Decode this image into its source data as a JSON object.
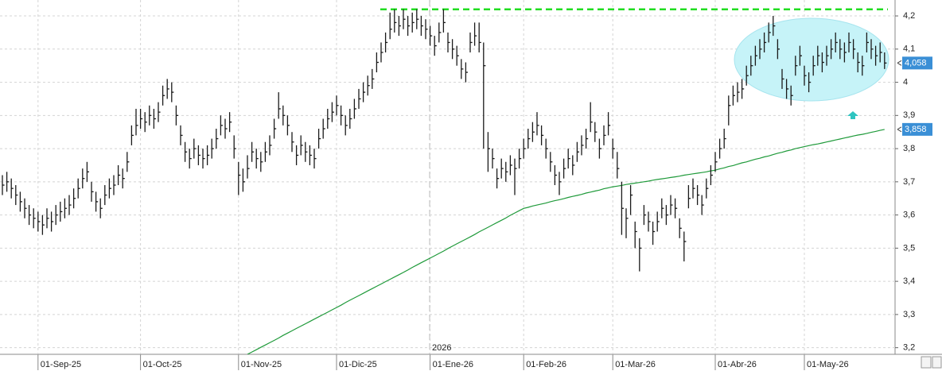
{
  "chart_data": {
    "type": "ohlc",
    "categories": [
      null,
      null,
      null,
      null,
      null,
      null,
      null,
      null,
      "01-Sep-25",
      null,
      null,
      null,
      null,
      null,
      null,
      null,
      null,
      null,
      null,
      null,
      null,
      null,
      null,
      null,
      null,
      null,
      null,
      null,
      null,
      null,
      null,
      "01-Oct-25",
      null,
      null,
      null,
      null,
      null,
      null,
      null,
      null,
      null,
      null,
      null,
      null,
      null,
      null,
      null,
      null,
      null,
      null,
      null,
      null,
      null,
      "01-Nov-25",
      null,
      null,
      null,
      null,
      null,
      null,
      null,
      null,
      null,
      null,
      null,
      null,
      null,
      null,
      null,
      null,
      null,
      null,
      null,
      null,
      null,
      "01-Dic-25",
      null,
      null,
      null,
      null,
      null,
      null,
      null,
      null,
      null,
      null,
      null,
      null,
      null,
      null,
      null,
      null,
      null,
      null,
      null,
      null,
      "01-Ene-26",
      null,
      null,
      null,
      null,
      null,
      null,
      null,
      null,
      null,
      null,
      null,
      null,
      null,
      null,
      null,
      null,
      null,
      null,
      null,
      null,
      "01-Feb-26",
      null,
      null,
      null,
      null,
      null,
      null,
      null,
      null,
      null,
      null,
      null,
      null,
      null,
      null,
      null,
      null,
      null,
      null,
      null,
      "01-Mar-26",
      null,
      null,
      null,
      null,
      null,
      null,
      null,
      null,
      null,
      null,
      null,
      null,
      null,
      null,
      null,
      null,
      null,
      null,
      null,
      null,
      null,
      null,
      "01-Abr-26",
      null,
      null,
      null,
      null,
      null,
      null,
      null,
      null,
      null,
      null,
      null,
      null,
      null,
      null,
      null,
      null,
      null,
      null,
      null,
      "01-May-26",
      null,
      null,
      null,
      null,
      null,
      null,
      null,
      null,
      null,
      null,
      null,
      null,
      null,
      null,
      null,
      null,
      null,
      null
    ],
    "high": [
      3.72,
      3.73,
      3.71,
      3.69,
      3.67,
      3.65,
      3.63,
      3.62,
      3.61,
      3.6,
      3.62,
      3.61,
      3.63,
      3.64,
      3.65,
      3.66,
      3.68,
      3.71,
      3.74,
      3.76,
      3.7,
      3.67,
      3.65,
      3.69,
      3.71,
      3.72,
      3.75,
      3.74,
      3.79,
      3.87,
      3.92,
      3.92,
      3.91,
      3.93,
      3.92,
      3.94,
      3.99,
      4.01,
      4.0,
      3.93,
      3.87,
      3.82,
      3.8,
      3.83,
      3.81,
      3.8,
      3.81,
      3.83,
      3.86,
      3.9,
      3.89,
      3.91,
      3.84,
      3.76,
      3.74,
      3.78,
      3.82,
      3.8,
      3.79,
      3.82,
      3.84,
      3.89,
      3.97,
      3.93,
      3.9,
      3.85,
      3.81,
      3.84,
      3.82,
      3.81,
      3.8,
      3.86,
      3.89,
      3.92,
      3.94,
      3.96,
      3.93,
      3.9,
      3.92,
      3.95,
      3.98,
      4.0,
      4.02,
      4.04,
      4.09,
      4.12,
      4.15,
      4.21,
      4.22,
      4.2,
      4.22,
      4.2,
      4.21,
      4.22,
      4.2,
      4.19,
      4.17,
      4.14,
      4.18,
      4.22,
      4.15,
      4.13,
      4.11,
      4.07,
      4.06,
      4.15,
      4.18,
      4.18,
      4.12,
      3.85,
      3.8,
      3.74,
      3.77,
      3.76,
      3.78,
      3.77,
      3.8,
      3.83,
      3.86,
      3.88,
      3.91,
      3.87,
      3.83,
      3.79,
      3.75,
      3.73,
      3.77,
      3.8,
      3.78,
      3.82,
      3.84,
      3.86,
      3.94,
      3.88,
      3.83,
      3.87,
      3.91,
      3.83,
      3.79,
      3.7,
      3.62,
      3.69,
      3.58,
      3.53,
      3.63,
      3.61,
      3.58,
      3.61,
      3.65,
      3.63,
      3.66,
      3.65,
      3.59,
      3.55,
      3.69,
      3.71,
      3.69,
      3.66,
      3.71,
      3.75,
      3.79,
      3.83,
      3.86,
      3.96,
      3.99,
      4.0,
      4.01,
      4.05,
      4.08,
      4.11,
      4.13,
      4.15,
      4.18,
      4.2,
      4.13,
      4.04,
      4.01,
      3.99,
      4.08,
      4.11,
      4.05,
      4.03,
      4.08,
      4.11,
      4.09,
      4.11,
      4.13,
      4.15,
      4.13,
      4.12,
      4.15,
      4.13,
      4.09,
      4.08,
      4.15,
      4.13,
      4.11,
      4.12,
      4.09
    ],
    "low": [
      3.66,
      3.67,
      3.65,
      3.63,
      3.61,
      3.59,
      3.57,
      3.56,
      3.55,
      3.54,
      3.56,
      3.55,
      3.57,
      3.58,
      3.59,
      3.6,
      3.62,
      3.65,
      3.68,
      3.7,
      3.64,
      3.61,
      3.59,
      3.63,
      3.65,
      3.66,
      3.69,
      3.68,
      3.73,
      3.81,
      3.84,
      3.86,
      3.85,
      3.87,
      3.86,
      3.88,
      3.93,
      3.95,
      3.94,
      3.87,
      3.81,
      3.76,
      3.74,
      3.77,
      3.75,
      3.74,
      3.75,
      3.77,
      3.8,
      3.84,
      3.83,
      3.85,
      3.77,
      3.66,
      3.67,
      3.71,
      3.76,
      3.74,
      3.73,
      3.76,
      3.78,
      3.83,
      3.89,
      3.87,
      3.84,
      3.79,
      3.75,
      3.78,
      3.76,
      3.75,
      3.74,
      3.8,
      3.83,
      3.86,
      3.88,
      3.9,
      3.87,
      3.84,
      3.86,
      3.89,
      3.92,
      3.94,
      3.96,
      3.98,
      4.03,
      4.06,
      4.09,
      4.13,
      4.15,
      4.14,
      4.16,
      4.14,
      4.15,
      4.16,
      4.14,
      4.13,
      4.11,
      4.08,
      4.12,
      4.15,
      4.09,
      4.07,
      4.05,
      4.01,
      4.0,
      4.09,
      4.11,
      4.09,
      3.8,
      3.73,
      3.74,
      3.68,
      3.71,
      3.7,
      3.72,
      3.66,
      3.74,
      3.77,
      3.8,
      3.82,
      3.84,
      3.81,
      3.77,
      3.73,
      3.69,
      3.66,
      3.71,
      3.74,
      3.72,
      3.76,
      3.78,
      3.8,
      3.85,
      3.82,
      3.77,
      3.81,
      3.84,
      3.77,
      3.71,
      3.54,
      3.53,
      3.6,
      3.5,
      3.43,
      3.57,
      3.55,
      3.51,
      3.55,
      3.59,
      3.57,
      3.6,
      3.59,
      3.53,
      3.46,
      3.62,
      3.65,
      3.63,
      3.6,
      3.65,
      3.69,
      3.73,
      3.77,
      3.8,
      3.87,
      3.93,
      3.94,
      3.95,
      3.99,
      4.02,
      4.05,
      4.07,
      4.09,
      4.12,
      4.14,
      4.07,
      3.98,
      3.95,
      3.93,
      4.02,
      4.05,
      3.99,
      3.97,
      4.02,
      4.05,
      4.03,
      4.05,
      4.07,
      4.09,
      4.07,
      4.06,
      4.09,
      4.07,
      4.03,
      4.02,
      4.09,
      4.07,
      4.05,
      4.06,
      4.04
    ],
    "close": [
      3.69,
      3.7,
      3.68,
      3.66,
      3.64,
      3.62,
      3.6,
      3.59,
      3.58,
      3.57,
      3.59,
      3.58,
      3.6,
      3.61,
      3.62,
      3.63,
      3.65,
      3.68,
      3.71,
      3.73,
      3.67,
      3.64,
      3.62,
      3.66,
      3.68,
      3.69,
      3.72,
      3.71,
      3.76,
      3.84,
      3.87,
      3.89,
      3.88,
      3.9,
      3.89,
      3.91,
      3.96,
      3.98,
      3.97,
      3.9,
      3.84,
      3.79,
      3.77,
      3.8,
      3.78,
      3.77,
      3.78,
      3.8,
      3.83,
      3.87,
      3.86,
      3.88,
      3.8,
      3.72,
      3.7,
      3.74,
      3.79,
      3.77,
      3.76,
      3.79,
      3.81,
      3.86,
      3.92,
      3.9,
      3.87,
      3.82,
      3.78,
      3.81,
      3.79,
      3.78,
      3.77,
      3.83,
      3.86,
      3.89,
      3.91,
      3.93,
      3.9,
      3.87,
      3.89,
      3.92,
      3.95,
      3.97,
      3.99,
      4.01,
      4.06,
      4.09,
      4.12,
      4.16,
      4.18,
      4.17,
      4.19,
      4.17,
      4.18,
      4.19,
      4.17,
      4.16,
      4.14,
      4.11,
      4.15,
      4.18,
      4.12,
      4.1,
      4.08,
      4.04,
      4.03,
      4.12,
      4.14,
      4.12,
      4.05,
      3.8,
      3.77,
      3.71,
      3.74,
      3.73,
      3.75,
      3.74,
      3.77,
      3.8,
      3.83,
      3.85,
      3.87,
      3.84,
      3.8,
      3.76,
      3.72,
      3.7,
      3.74,
      3.77,
      3.75,
      3.79,
      3.81,
      3.83,
      3.88,
      3.85,
      3.8,
      3.84,
      3.87,
      3.8,
      3.74,
      3.62,
      3.59,
      3.66,
      3.55,
      3.5,
      3.6,
      3.58,
      3.55,
      3.58,
      3.62,
      3.6,
      3.63,
      3.62,
      3.56,
      3.52,
      3.65,
      3.68,
      3.66,
      3.63,
      3.68,
      3.72,
      3.76,
      3.8,
      3.83,
      3.93,
      3.96,
      3.97,
      3.98,
      4.02,
      4.05,
      4.08,
      4.1,
      4.12,
      4.15,
      4.17,
      4.1,
      4.01,
      3.98,
      3.96,
      4.05,
      4.08,
      4.02,
      4.0,
      4.05,
      4.08,
      4.06,
      4.08,
      4.1,
      4.12,
      4.1,
      4.09,
      4.12,
      4.1,
      4.06,
      4.05,
      4.12,
      4.1,
      4.08,
      4.09,
      4.058
    ],
    "bar_color": "#1a1a1a",
    "ma": {
      "color": "#1f9a3a",
      "values": [
        null,
        null,
        null,
        null,
        null,
        null,
        null,
        null,
        null,
        null,
        null,
        null,
        null,
        null,
        null,
        null,
        null,
        null,
        null,
        null,
        null,
        null,
        null,
        null,
        null,
        null,
        null,
        null,
        null,
        null,
        null,
        null,
        null,
        null,
        null,
        null,
        null,
        null,
        null,
        null,
        null,
        null,
        null,
        null,
        null,
        null,
        null,
        null,
        null,
        null,
        null,
        null,
        null,
        null,
        null,
        3.18,
        3.187,
        3.194,
        3.201,
        3.208,
        3.215,
        3.222,
        3.229,
        3.237,
        3.244,
        3.251,
        3.258,
        3.265,
        3.272,
        3.279,
        3.286,
        3.293,
        3.3,
        3.307,
        3.314,
        3.321,
        3.328,
        3.336,
        3.343,
        3.35,
        3.357,
        3.364,
        3.371,
        3.378,
        3.385,
        3.392,
        3.399,
        3.406,
        3.413,
        3.42,
        3.427,
        3.434,
        3.442,
        3.449,
        3.456,
        3.463,
        3.47,
        3.477,
        3.484,
        3.491,
        3.499,
        3.506,
        3.513,
        3.52,
        3.527,
        3.534,
        3.541,
        3.549,
        3.556,
        3.563,
        3.57,
        3.577,
        3.584,
        3.591,
        3.599,
        3.606,
        3.613,
        3.62,
        3.623,
        3.627,
        3.63,
        3.633,
        3.636,
        3.64,
        3.643,
        3.646,
        3.649,
        3.653,
        3.656,
        3.659,
        3.662,
        3.666,
        3.669,
        3.672,
        3.675,
        3.679,
        3.682,
        3.685,
        3.687,
        3.689,
        3.692,
        3.694,
        3.696,
        3.698,
        3.7,
        3.702,
        3.705,
        3.707,
        3.709,
        3.711,
        3.713,
        3.715,
        3.717,
        3.72,
        3.722,
        3.724,
        3.726,
        3.728,
        3.73,
        3.733,
        3.735,
        3.739,
        3.742,
        3.746,
        3.749,
        3.753,
        3.757,
        3.76,
        3.764,
        3.768,
        3.771,
        3.775,
        3.778,
        3.782,
        3.786,
        3.789,
        3.793,
        3.796,
        3.8,
        3.803,
        3.806,
        3.809,
        3.812,
        3.814,
        3.817,
        3.82,
        3.823,
        3.826,
        3.829,
        3.832,
        3.835,
        3.838,
        3.841,
        3.843,
        3.846,
        3.849,
        3.852,
        3.855,
        3.858
      ]
    },
    "resistance": {
      "value": 4.22,
      "color": "#22dd22"
    },
    "price_tags": [
      {
        "value": 4.058,
        "label": "4,058",
        "color": "#3a8fd6"
      },
      {
        "value": 3.858,
        "label": "3,858",
        "color": "#3a8fd6"
      }
    ],
    "year_label": "2026",
    "ylim": [
      3.18,
      4.248
    ],
    "yticks": [
      {
        "value": 3.2,
        "label": "3,2"
      },
      {
        "value": 3.3,
        "label": "3,3"
      },
      {
        "value": 3.4,
        "label": "3,4"
      },
      {
        "value": 3.5,
        "label": "3,5"
      },
      {
        "value": 3.6,
        "label": "3,6"
      },
      {
        "value": 3.7,
        "label": "3,7"
      },
      {
        "value": 3.8,
        "label": "3,8"
      },
      {
        "value": 3.9,
        "label": "3,9"
      },
      {
        "value": 4,
        "label": "4"
      },
      {
        "value": 4.1,
        "label": "4,1"
      },
      {
        "value": 4.2,
        "label": "4,2"
      }
    ],
    "grid": true
  }
}
